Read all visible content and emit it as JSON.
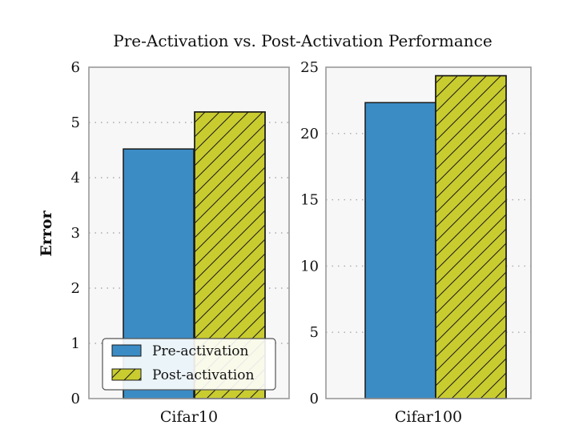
{
  "chart_data": {
    "type": "bar",
    "title": "Pre-Activation vs. Post-Activation Performance",
    "ylabel": "Error",
    "legend": {
      "placement": "lower-left",
      "entries": [
        "Pre-activation",
        "Post-activation"
      ]
    },
    "grid": "horizontal-dotted",
    "colors": {
      "pre": "#3b8cc4",
      "post": "#c9cc2f",
      "panel_bg": "#f7f7f7",
      "frame": "#999999",
      "bar_edge": "#1a1a1a"
    },
    "panels": [
      {
        "category": "Cifar10",
        "ylim": [
          0,
          6
        ],
        "yticks": [
          0,
          1,
          2,
          3,
          4,
          5,
          6
        ],
        "series": [
          {
            "name": "Pre-activation",
            "value": 4.52
          },
          {
            "name": "Post-activation",
            "value": 5.19
          }
        ]
      },
      {
        "category": "Cifar100",
        "ylim": [
          0,
          25
        ],
        "yticks": [
          0,
          5,
          10,
          15,
          20,
          25
        ],
        "series": [
          {
            "name": "Pre-activation",
            "value": 22.33
          },
          {
            "name": "Post-activation",
            "value": 24.36
          }
        ]
      }
    ]
  }
}
